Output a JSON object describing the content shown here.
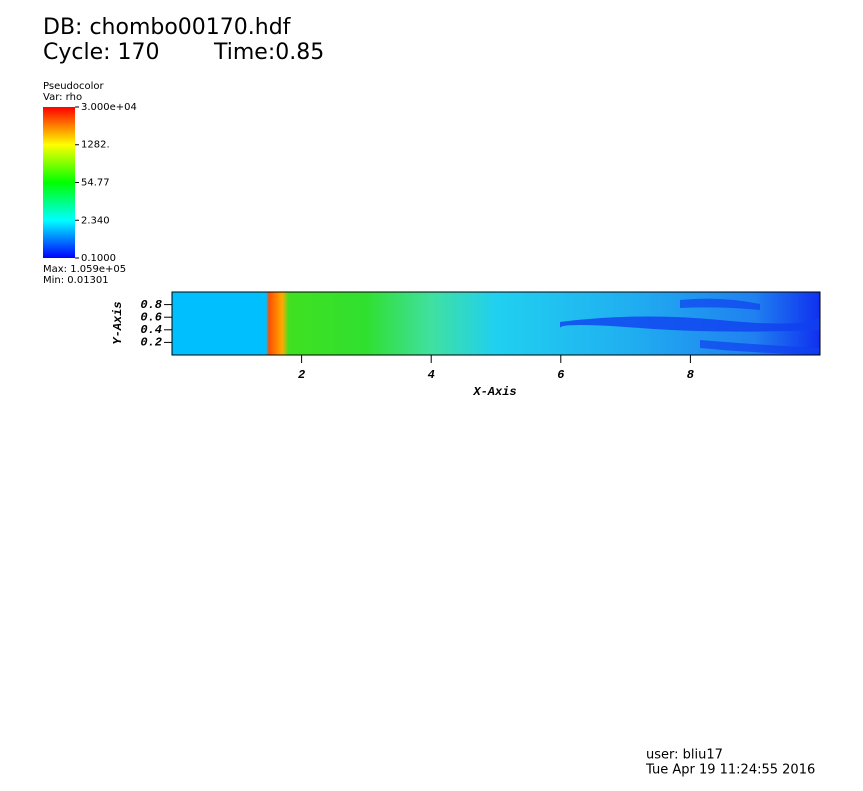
{
  "chart_data": {
    "type": "pseudocolor",
    "database": "DB: chombo00170.hdf",
    "cycle": "Cycle: 170",
    "time": "Time:0.85",
    "plot_name": "Pseudocolor",
    "variable": "Var: rho",
    "colorbar_lim": [
      0.1,
      30000
    ],
    "colorbar_log": true,
    "colorbar_ticks": [
      {
        "value": 30000,
        "label": "3.000e+04"
      },
      {
        "value": 1282,
        "label": "1282."
      },
      {
        "value": 54.77,
        "label": "54.77"
      },
      {
        "value": 2.34,
        "label": "2.340"
      },
      {
        "value": 0.1,
        "label": "0.1000"
      }
    ],
    "max_label": "Max:  1.059e+05",
    "min_label": "Min:  0.01301",
    "x_label": "X-Axis",
    "y_label": "Y-Axis",
    "xlim": [
      0,
      10
    ],
    "ylim": [
      0,
      1
    ],
    "xticks": [
      2,
      4,
      6,
      8
    ],
    "yticks": [
      0.2,
      0.4,
      0.6,
      0.8
    ],
    "user": "user: bliu17",
    "date": "Tue Apr 19 11:24:55 2016"
  }
}
